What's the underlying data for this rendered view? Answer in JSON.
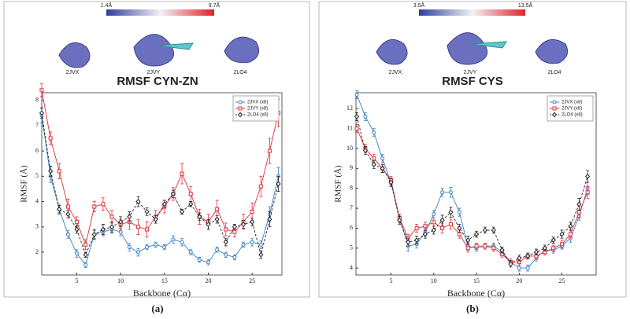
{
  "chart_data": [
    {
      "type": "line",
      "title": "RMSF CYN-ZN",
      "panel_label": "(a)",
      "x_label": "Backbone (Cα)",
      "y_label": "RMSF (Å)",
      "colorbar": {
        "min_label": "1.4Å",
        "max_label": "9.7Å"
      },
      "structure_labels": [
        "2JVX",
        "2JVY",
        "2LO4"
      ],
      "x": [
        1,
        2,
        3,
        4,
        5,
        6,
        7,
        8,
        9,
        10,
        11,
        12,
        13,
        14,
        15,
        16,
        17,
        18,
        19,
        20,
        21,
        22,
        23,
        24,
        25,
        26,
        27,
        28
      ],
      "xlim": [
        1,
        28.4
      ],
      "ylim": [
        1.1,
        8.3
      ],
      "xticks": [
        5,
        10,
        15,
        20,
        25
      ],
      "yticks": [
        2,
        3,
        4,
        5,
        6,
        7,
        8
      ],
      "legend": "upper right",
      "series": [
        {
          "name": "2JVX (x8)",
          "color": "#3a7fc4",
          "marker": "circle",
          "dashed": false,
          "values": [
            7.4,
            5.0,
            3.7,
            2.7,
            1.95,
            1.5,
            2.7,
            2.8,
            2.9,
            2.8,
            2.2,
            2.0,
            2.2,
            2.3,
            2.2,
            2.5,
            2.4,
            2.0,
            1.7,
            1.6,
            2.1,
            1.9,
            1.8,
            2.3,
            2.4,
            2.3,
            3.5,
            5.0
          ],
          "errors": [
            0.3,
            0.25,
            0.2,
            0.15,
            0.15,
            0.1,
            0.15,
            0.15,
            0.15,
            0.15,
            0.15,
            0.15,
            0.1,
            0.1,
            0.1,
            0.15,
            0.15,
            0.1,
            0.1,
            0.1,
            0.1,
            0.1,
            0.1,
            0.1,
            0.15,
            0.15,
            0.3,
            0.35
          ]
        },
        {
          "name": "2JVY (x8)",
          "color": "#e0303a",
          "marker": "square",
          "dashed": false,
          "values": [
            8.4,
            6.5,
            5.2,
            3.8,
            3.2,
            2.3,
            3.8,
            3.9,
            3.4,
            3.1,
            3.2,
            3.0,
            2.9,
            3.4,
            3.8,
            4.3,
            5.1,
            4.3,
            3.4,
            3.2,
            3.7,
            2.9,
            2.8,
            3.2,
            3.6,
            4.6,
            6.0,
            7.5
          ],
          "errors": [
            0.25,
            0.25,
            0.3,
            0.3,
            0.2,
            0.2,
            0.2,
            0.25,
            0.25,
            0.2,
            0.3,
            0.3,
            0.3,
            0.25,
            0.25,
            0.25,
            0.4,
            0.3,
            0.3,
            0.3,
            0.35,
            0.25,
            0.2,
            0.3,
            0.35,
            0.4,
            0.5,
            0.55
          ]
        },
        {
          "name": "2LO4 (x8)",
          "color": "#222222",
          "marker": "diamond",
          "dashed": true,
          "values": [
            7.5,
            5.2,
            3.7,
            3.5,
            2.9,
            1.9,
            2.7,
            2.9,
            3.0,
            3.2,
            3.4,
            4.0,
            3.6,
            3.3,
            3.9,
            4.3,
            3.6,
            3.9,
            3.4,
            3.1,
            3.3,
            2.4,
            3.0,
            3.1,
            3.2,
            1.9,
            3.3,
            4.7
          ],
          "errors": [
            0.2,
            0.2,
            0.15,
            0.15,
            0.15,
            0.1,
            0.2,
            0.2,
            0.2,
            0.2,
            0.2,
            0.2,
            0.15,
            0.15,
            0.15,
            0.15,
            0.1,
            0.1,
            0.15,
            0.2,
            0.15,
            0.15,
            0.1,
            0.15,
            0.15,
            0.15,
            0.3,
            0.3
          ]
        }
      ]
    },
    {
      "type": "line",
      "title": "RMSF CYS",
      "panel_label": "(b)",
      "x_label": "Backbone (Cα)",
      "y_label": "RMSF (Å)",
      "colorbar": {
        "min_label": "3.5Å",
        "max_label": "13.5Å"
      },
      "structure_labels": [
        "2JVX",
        "2JVY",
        "2LO4"
      ],
      "x": [
        1,
        2,
        3,
        4,
        5,
        6,
        7,
        8,
        9,
        10,
        11,
        12,
        13,
        14,
        15,
        16,
        17,
        18,
        19,
        20,
        21,
        22,
        23,
        24,
        25,
        26,
        27,
        28
      ],
      "xlim": [
        0.9,
        29
      ],
      "ylim": [
        3.65,
        12.8
      ],
      "xticks": [
        5,
        10,
        15,
        20,
        25
      ],
      "yticks": [
        4,
        5,
        6,
        7,
        8,
        9,
        10,
        11,
        12
      ],
      "legend": "upper right",
      "series": [
        {
          "name": "2JVX (x8)",
          "color": "#3a7fc4",
          "marker": "circle",
          "dashed": false,
          "values": [
            12.7,
            11.6,
            10.8,
            9.5,
            8.3,
            6.5,
            5.1,
            5.2,
            5.8,
            6.7,
            7.8,
            7.8,
            6.8,
            5.1,
            5.0,
            5.1,
            5.1,
            4.8,
            4.3,
            4.0,
            4.0,
            4.5,
            4.9,
            4.9,
            5.1,
            5.5,
            6.6,
            8.0
          ],
          "errors": [
            0.2,
            0.2,
            0.2,
            0.2,
            0.2,
            0.2,
            0.25,
            0.2,
            0.2,
            0.2,
            0.2,
            0.25,
            0.2,
            0.2,
            0.15,
            0.15,
            0.15,
            0.15,
            0.15,
            0.15,
            0.15,
            0.15,
            0.15,
            0.15,
            0.15,
            0.2,
            0.2,
            0.3
          ]
        },
        {
          "name": "2JVY (x8)",
          "color": "#e0303a",
          "marker": "square",
          "dashed": false,
          "values": [
            11.0,
            10.0,
            9.5,
            9.0,
            8.4,
            6.5,
            5.5,
            6.0,
            6.1,
            6.3,
            6.0,
            6.2,
            5.7,
            5.0,
            5.1,
            5.1,
            5.0,
            4.7,
            4.3,
            4.3,
            4.6,
            4.6,
            4.8,
            5.0,
            5.2,
            5.7,
            6.8,
            7.8
          ],
          "errors": [
            0.2,
            0.2,
            0.2,
            0.2,
            0.2,
            0.2,
            0.2,
            0.2,
            0.2,
            0.2,
            0.25,
            0.25,
            0.2,
            0.2,
            0.15,
            0.15,
            0.15,
            0.15,
            0.15,
            0.15,
            0.15,
            0.15,
            0.15,
            0.15,
            0.2,
            0.2,
            0.3,
            0.3
          ]
        },
        {
          "name": "2LO4 (x8)",
          "color": "#222222",
          "marker": "diamond",
          "dashed": true,
          "values": [
            11.6,
            9.9,
            9.2,
            9.0,
            8.3,
            6.4,
            5.3,
            5.4,
            5.7,
            5.9,
            6.4,
            6.8,
            6.0,
            5.4,
            5.7,
            5.9,
            5.9,
            4.9,
            4.2,
            4.5,
            4.6,
            4.8,
            5.0,
            5.4,
            5.7,
            6.1,
            7.2,
            8.6
          ],
          "errors": [
            0.2,
            0.2,
            0.2,
            0.2,
            0.2,
            0.2,
            0.2,
            0.2,
            0.2,
            0.2,
            0.25,
            0.25,
            0.2,
            0.2,
            0.15,
            0.15,
            0.15,
            0.15,
            0.15,
            0.15,
            0.15,
            0.15,
            0.15,
            0.15,
            0.2,
            0.2,
            0.3,
            0.3
          ]
        }
      ]
    }
  ]
}
